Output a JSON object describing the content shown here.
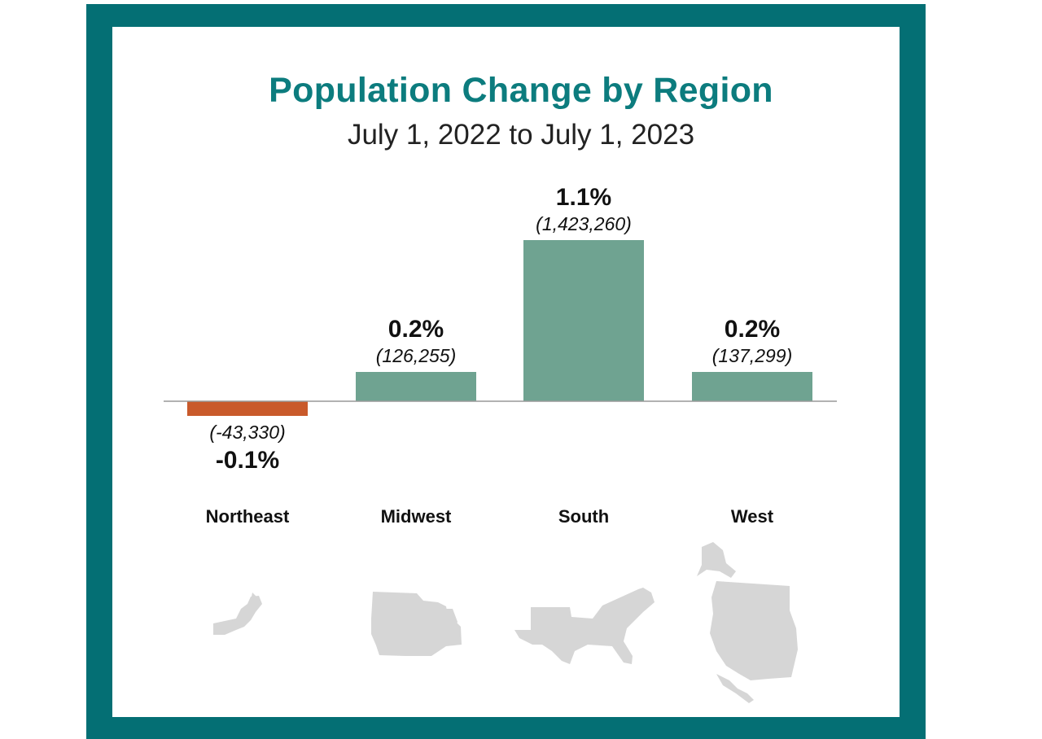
{
  "title": "Population Change by Region",
  "subtitle": "July 1, 2022 to July 1, 2023",
  "colors": {
    "frame": "#046f74",
    "title": "#0c7c7e",
    "positive_bar": "#6fa391",
    "negative_bar": "#c95a2b",
    "baseline": "#999999",
    "map": "#d6d6d6"
  },
  "chart_data": {
    "type": "bar",
    "categories": [
      "Northeast",
      "Midwest",
      "South",
      "West"
    ],
    "values": [
      -0.1,
      0.2,
      1.1,
      0.2
    ],
    "percent_labels": [
      "-0.1%",
      "0.2%",
      "1.1%",
      "0.2%"
    ],
    "count_labels": [
      "(-43,330)",
      "(126,255)",
      "(1,423,260)",
      "(137,299)"
    ],
    "counts": [
      -43330,
      126255,
      1423260,
      137299
    ],
    "title": "Population Change by Region",
    "subtitle": "July 1, 2022 to July 1, 2023",
    "xlabel": "",
    "ylabel": "",
    "grid": false,
    "legend": "none"
  },
  "maps": [
    {
      "region": "Northeast",
      "icon": "northeast-map-icon"
    },
    {
      "region": "Midwest",
      "icon": "midwest-map-icon"
    },
    {
      "region": "South",
      "icon": "south-map-icon"
    },
    {
      "region": "West",
      "icon": "west-map-icon"
    }
  ]
}
